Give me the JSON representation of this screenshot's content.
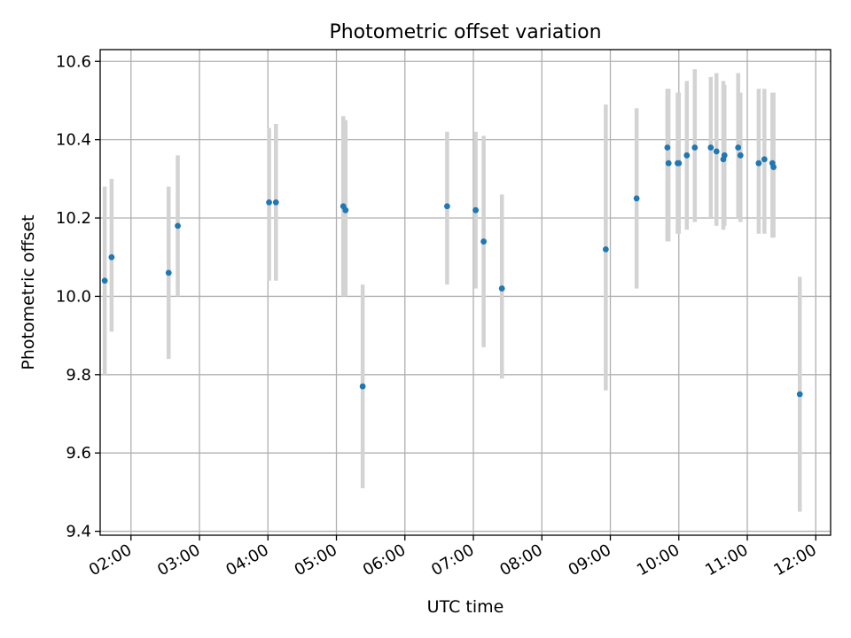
{
  "chart_data": {
    "type": "scatter",
    "title": "Photometric offset variation",
    "xlabel": "UTC time",
    "ylabel": "Photometric offset",
    "x_tick_labels": [
      "02:00",
      "03:00",
      "04:00",
      "05:00",
      "06:00",
      "07:00",
      "08:00",
      "09:00",
      "10:00",
      "11:00",
      "12:00"
    ],
    "y_tick_labels": [
      "9.4",
      "9.6",
      "9.8",
      "10.0",
      "10.2",
      "10.4",
      "10.6"
    ],
    "ylim": [
      9.39,
      10.63
    ],
    "xlim": [
      "01:33",
      "12:13"
    ],
    "grid": true,
    "colors": {
      "point": "#1f77b4",
      "errorbar": "#d3d3d3"
    },
    "points": [
      {
        "x": "01:37",
        "y": 10.04,
        "err_low": 9.8,
        "err_high": 10.28
      },
      {
        "x": "01:43",
        "y": 10.1,
        "err_low": 9.91,
        "err_high": 10.3
      },
      {
        "x": "02:33",
        "y": 10.06,
        "err_low": 9.84,
        "err_high": 10.28
      },
      {
        "x": "02:41",
        "y": 10.18,
        "err_low": 10.0,
        "err_high": 10.36
      },
      {
        "x": "04:01",
        "y": 10.24,
        "err_low": 10.04,
        "err_high": 10.43
      },
      {
        "x": "04:07",
        "y": 10.24,
        "err_low": 10.04,
        "err_high": 10.44
      },
      {
        "x": "05:06",
        "y": 10.23,
        "err_low": 10.0,
        "err_high": 10.46
      },
      {
        "x": "05:08",
        "y": 10.22,
        "err_low": 10.0,
        "err_high": 10.45
      },
      {
        "x": "05:23",
        "y": 9.77,
        "err_low": 9.51,
        "err_high": 10.03
      },
      {
        "x": "06:37",
        "y": 10.23,
        "err_low": 10.03,
        "err_high": 10.42
      },
      {
        "x": "07:02",
        "y": 10.22,
        "err_low": 10.02,
        "err_high": 10.42
      },
      {
        "x": "07:09",
        "y": 10.14,
        "err_low": 9.87,
        "err_high": 10.41
      },
      {
        "x": "07:25",
        "y": 10.02,
        "err_low": 9.79,
        "err_high": 10.26
      },
      {
        "x": "08:56",
        "y": 10.12,
        "err_low": 9.76,
        "err_high": 10.49
      },
      {
        "x": "09:23",
        "y": 10.25,
        "err_low": 10.02,
        "err_high": 10.48
      },
      {
        "x": "09:50",
        "y": 10.38,
        "err_low": 10.14,
        "err_high": 10.53
      },
      {
        "x": "09:51",
        "y": 10.34,
        "err_low": 10.14,
        "err_high": 10.53
      },
      {
        "x": "09:59",
        "y": 10.34,
        "err_low": 10.16,
        "err_high": 10.52
      },
      {
        "x": "10:00",
        "y": 10.34,
        "err_low": 10.16,
        "err_high": 10.52
      },
      {
        "x": "10:07",
        "y": 10.36,
        "err_low": 10.17,
        "err_high": 10.55
      },
      {
        "x": "10:14",
        "y": 10.38,
        "err_low": 10.19,
        "err_high": 10.58
      },
      {
        "x": "10:28",
        "y": 10.38,
        "err_low": 10.2,
        "err_high": 10.56
      },
      {
        "x": "10:33",
        "y": 10.37,
        "err_low": 10.18,
        "err_high": 10.57
      },
      {
        "x": "10:39",
        "y": 10.35,
        "err_low": 10.17,
        "err_high": 10.55
      },
      {
        "x": "10:40",
        "y": 10.36,
        "err_low": 10.18,
        "err_high": 10.54
      },
      {
        "x": "10:52",
        "y": 10.38,
        "err_low": 10.2,
        "err_high": 10.57
      },
      {
        "x": "10:54",
        "y": 10.36,
        "err_low": 10.19,
        "err_high": 10.52
      },
      {
        "x": "11:10",
        "y": 10.34,
        "err_low": 10.16,
        "err_high": 10.53
      },
      {
        "x": "11:15",
        "y": 10.35,
        "err_low": 10.16,
        "err_high": 10.53
      },
      {
        "x": "11:22",
        "y": 10.34,
        "err_low": 10.15,
        "err_high": 10.52
      },
      {
        "x": "11:23",
        "y": 10.33,
        "err_low": 10.15,
        "err_high": 10.52
      },
      {
        "x": "11:46",
        "y": 9.75,
        "err_low": 9.45,
        "err_high": 10.05
      }
    ]
  }
}
